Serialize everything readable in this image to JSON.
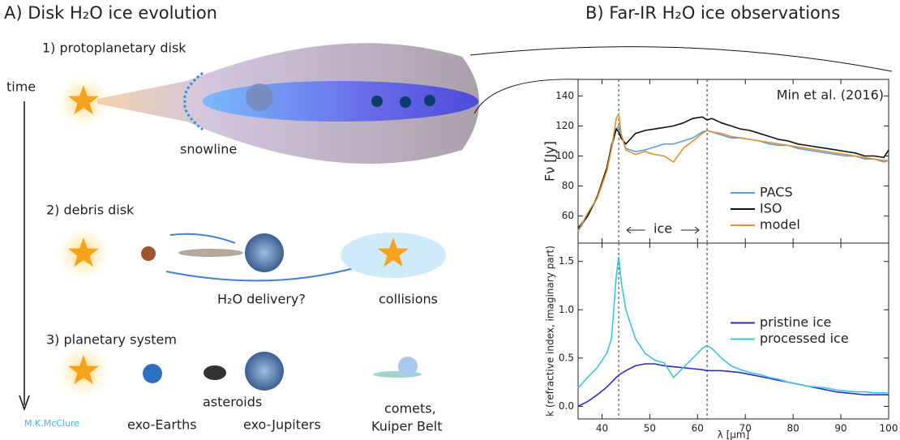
{
  "panel_titles": {
    "left": "A) Disk H₂O ice evolution",
    "right": "B) Far-IR H₂O ice observations"
  },
  "illustration": {
    "stage1": "1) protoplanetary disk",
    "time": "time",
    "snowline": "snowline",
    "stage2": "2) debris disk",
    "delivery": "H₂O delivery?",
    "collisions": "collisions",
    "stage3": "3) planetary system",
    "asteroids": "asteroids",
    "exo_earths": "exo-Earths",
    "exo_jupiters": "exo-Jupiters",
    "comets": "comets,",
    "kuiper": "Kuiper Belt",
    "credit": "M.K.McClure"
  },
  "chart_data": [
    {
      "type": "line",
      "ylabel": "Fν [Jy]",
      "annotation": "Min et al. (2016)",
      "ice_label": "ice",
      "x": [
        35,
        37,
        39,
        41,
        42,
        43,
        43.5,
        44,
        45,
        47,
        49,
        51,
        53,
        55,
        57,
        59,
        61,
        62,
        63,
        65,
        67,
        69,
        71,
        73,
        75,
        77,
        79,
        81,
        83,
        85,
        87,
        89,
        91,
        93,
        95,
        97,
        99,
        100
      ],
      "series": [
        {
          "name": "PACS",
          "color": "#5b9ee6",
          "values": [
            50,
            60,
            72,
            90,
            105,
            118,
            120,
            114,
            105,
            103,
            104,
            106,
            108,
            108,
            110,
            112,
            116,
            117,
            116,
            114,
            112,
            112,
            111,
            110,
            108,
            107,
            107,
            105,
            104,
            103,
            102,
            101,
            100,
            100,
            98,
            98,
            96,
            97
          ]
        },
        {
          "name": "ISO",
          "color": "#111111",
          "values": [
            52,
            60,
            73,
            92,
            107,
            118,
            116,
            112,
            108,
            115,
            117,
            118,
            119,
            120,
            122,
            125,
            126,
            124,
            125,
            122,
            120,
            118,
            117,
            115,
            113,
            111,
            110,
            108,
            107,
            106,
            105,
            104,
            103,
            102,
            100,
            100,
            99,
            104
          ]
        },
        {
          "name": "model",
          "color": "#e0912c",
          "values": [
            50,
            62,
            72,
            90,
            105,
            125,
            128,
            115,
            104,
            101,
            103,
            101,
            100,
            96,
            105,
            110,
            115,
            117,
            116,
            115,
            113,
            112,
            111,
            110,
            109,
            108,
            107,
            106,
            105,
            104,
            103,
            102,
            101,
            100,
            99,
            98,
            97,
            97
          ]
        }
      ],
      "xlim": [
        35,
        100
      ],
      "xticks": [
        40,
        50,
        60,
        70,
        80,
        90,
        100
      ],
      "ylim": [
        42,
        151
      ],
      "yticks": [
        60,
        80,
        100,
        120,
        140
      ],
      "vlines": [
        43.5,
        62
      ],
      "legend": "lower right"
    },
    {
      "type": "line",
      "ylabel": "k (refractive index, imaginary part)",
      "xlabel": "λ [μm]",
      "x": [
        35,
        37,
        39,
        41,
        42,
        43,
        43.5,
        44,
        45,
        47,
        49,
        51,
        53,
        55,
        57,
        59,
        61,
        62,
        63,
        65,
        67,
        69,
        71,
        73,
        75,
        77,
        79,
        81,
        83,
        85,
        87,
        89,
        91,
        93,
        95,
        97,
        99,
        100
      ],
      "series": [
        {
          "name": "pristine ice",
          "color": "#2b2bc9",
          "values": [
            0.0,
            0.05,
            0.12,
            0.2,
            0.25,
            0.3,
            0.32,
            0.34,
            0.37,
            0.42,
            0.44,
            0.44,
            0.42,
            0.41,
            0.4,
            0.39,
            0.38,
            0.37,
            0.37,
            0.37,
            0.36,
            0.35,
            0.33,
            0.31,
            0.29,
            0.27,
            0.25,
            0.23,
            0.21,
            0.19,
            0.17,
            0.15,
            0.14,
            0.13,
            0.12,
            0.12,
            0.12,
            0.12
          ]
        },
        {
          "name": "processed ice",
          "color": "#38c4e6",
          "values": [
            0.19,
            0.3,
            0.4,
            0.55,
            0.7,
            1.35,
            1.55,
            1.3,
            1.0,
            0.7,
            0.55,
            0.48,
            0.45,
            0.3,
            0.4,
            0.5,
            0.6,
            0.63,
            0.6,
            0.5,
            0.42,
            0.38,
            0.35,
            0.33,
            0.3,
            0.28,
            0.25,
            0.23,
            0.21,
            0.2,
            0.19,
            0.17,
            0.16,
            0.15,
            0.15,
            0.14,
            0.14,
            0.14
          ]
        }
      ],
      "xlim": [
        35,
        100
      ],
      "xticks": [
        40,
        50,
        60,
        70,
        80,
        90,
        100
      ],
      "ylim": [
        -0.13,
        1.69
      ],
      "yticks": [
        {
          "value": 0,
          "label": "0.0"
        },
        {
          "value": 0.5,
          "label": "0.5"
        },
        {
          "value": 1,
          "label": "1.0"
        },
        {
          "value": 1.5,
          "label": "1.5"
        }
      ],
      "vlines": [
        43.5,
        62
      ],
      "legend": "center right"
    }
  ]
}
